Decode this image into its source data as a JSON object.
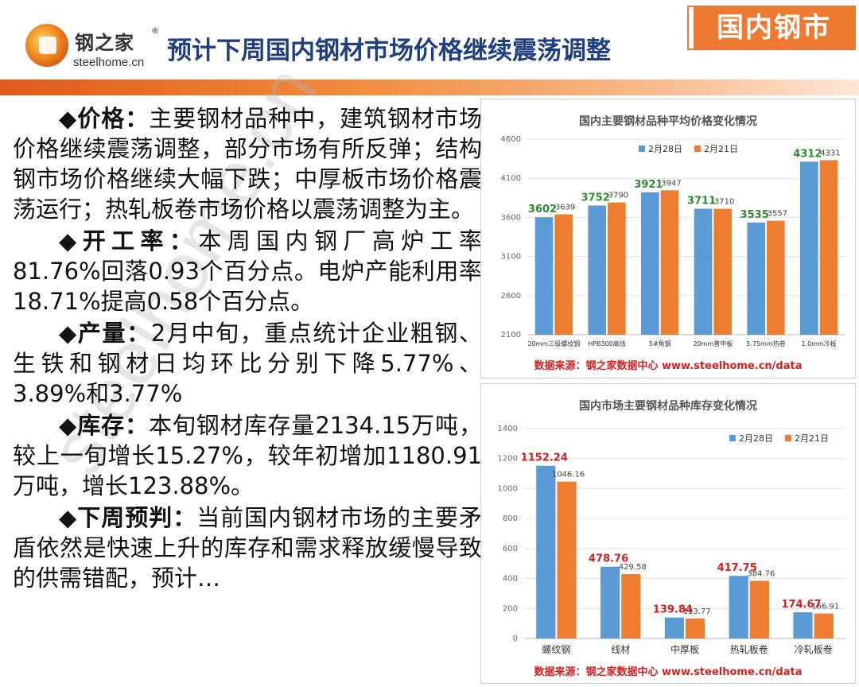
{
  "header": {
    "logo_cn": "钢之家",
    "logo_reg": "®",
    "logo_en": "steelhome.cn",
    "title": "预计下周国内钢材市场价格继续震荡调整",
    "section_tag": "国内钢市"
  },
  "body": {
    "paragraphs": [
      {
        "key": "◆价格：",
        "text": "主要钢材品种中，建筑钢材市场价格继续震荡调整，部分市场有所反弹；结构钢市场价格继续大幅下跌；中厚板市场价格震荡运行；热轧板卷市场价格以震荡调整为主。"
      },
      {
        "key": "◆开工率：",
        "text": "本周国内钢厂高炉工率81.76%回落0.93个百分点。电炉产能利用率18.71%提高0.58个百分点。"
      },
      {
        "key": "◆产量：",
        "text": "2月中旬，重点统计企业粗钢、生铁和钢材日均环比分别下降5.77%、3.89%和3.77%"
      },
      {
        "key": "◆库存：",
        "text": "本旬钢材库存量2134.15万吨，较上一旬增长15.27%，较年初增加1180.91万吨，增长123.88%。"
      },
      {
        "key": "◆下周预判：",
        "text": "当前国内钢材市场的主要矛盾依然是快速上升的库存和需求释放缓慢导致的供需错配，预计…"
      }
    ],
    "watermark": "steelhome.cn"
  },
  "chart_data": [
    {
      "type": "bar",
      "title": "国内主要钢材品种平均价格变化情况",
      "categories": [
        "20mm三级螺纹钢",
        "HPB300高线",
        "5#角钢",
        "20mm普中板",
        "5.75mm热卷",
        "1.0mm冷板"
      ],
      "series": [
        {
          "name": "2月28日",
          "values": [
            3602,
            3752,
            3921,
            3711,
            3535,
            4312
          ],
          "color": "#5b9bd5"
        },
        {
          "name": "2月21日",
          "values": [
            3639,
            3790,
            3947,
            3710,
            3557,
            4331
          ],
          "color": "#ed7d31"
        }
      ],
      "ylim": [
        2100,
        4600
      ],
      "yticks": [
        2100,
        2600,
        3100,
        3600,
        4100,
        4600
      ],
      "xlabel": "",
      "ylabel": "",
      "legend": "top-center",
      "grid": true,
      "label_color_s1": "#2e8b2e",
      "source": "数据来源：钢之家数据中心 www.steelhome.cn/data"
    },
    {
      "type": "bar",
      "title": "国内市场主要钢材品种库存变化情况",
      "categories": [
        "螺纹钢",
        "线材",
        "中厚板",
        "热轧板卷",
        "冷轧板卷"
      ],
      "series": [
        {
          "name": "2月28日",
          "values": [
            1152.24,
            478.76,
            139.84,
            417.75,
            174.67
          ],
          "color": "#5b9bd5"
        },
        {
          "name": "2月21日",
          "values": [
            1046.16,
            429.58,
            133.77,
            384.76,
            166.91
          ],
          "color": "#ed7d31"
        }
      ],
      "ylim": [
        0,
        1400
      ],
      "yticks": [
        0,
        200,
        400,
        600,
        800,
        1000,
        1200,
        1400
      ],
      "xlabel": "",
      "ylabel": "",
      "legend": "top-right",
      "grid": true,
      "label_color_s1": "#d42020",
      "source": "数据来源：钢之家数据中心 www.steelhome.cn/data"
    }
  ]
}
